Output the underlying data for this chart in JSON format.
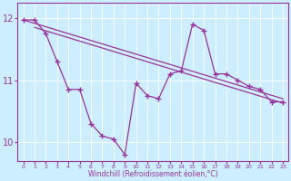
{
  "xlabel": "Windchill (Refroidissement éolien,°C)",
  "background_color": "#cceeff",
  "line_color": "#993399",
  "xlim": [
    -0.5,
    23.5
  ],
  "ylim": [
    9.7,
    12.25
  ],
  "yticks": [
    10,
    11,
    12
  ],
  "xticks": [
    0,
    1,
    2,
    3,
    4,
    5,
    6,
    7,
    8,
    9,
    10,
    11,
    12,
    13,
    14,
    15,
    16,
    17,
    18,
    19,
    20,
    21,
    22,
    23
  ],
  "zigzag_x": [
    0,
    1,
    2,
    3,
    4,
    5,
    6,
    7,
    8,
    9,
    10,
    11,
    12,
    13,
    14,
    15,
    16,
    17,
    18,
    19,
    20,
    21,
    22,
    23
  ],
  "zigzag_y": [
    11.97,
    11.97,
    11.75,
    11.3,
    10.85,
    10.85,
    10.3,
    10.1,
    10.05,
    9.8,
    10.95,
    10.75,
    10.7,
    11.1,
    11.15,
    11.9,
    11.8,
    11.1,
    11.1,
    11.0,
    10.9,
    10.85,
    10.65,
    10.65
  ],
  "upper_trend_x": [
    0,
    23
  ],
  "upper_trend_y": [
    11.97,
    10.7
  ],
  "lower_trend_x": [
    1,
    23
  ],
  "lower_trend_y": [
    11.85,
    10.63
  ],
  "marker": "+",
  "markersize": 4,
  "linewidth": 0.9
}
